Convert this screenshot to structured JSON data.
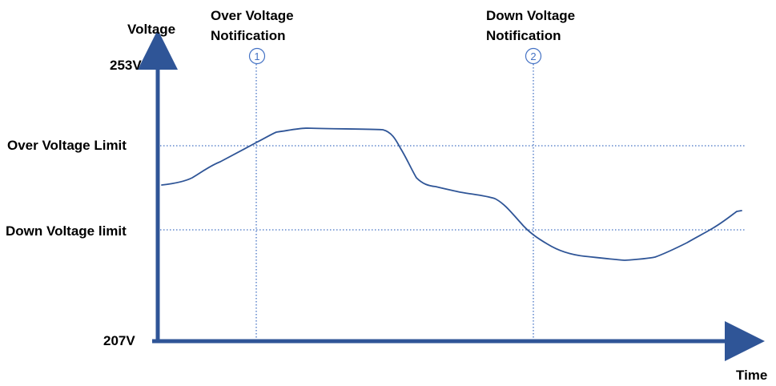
{
  "axis": {
    "y_label": "Voltage",
    "x_label": "Time",
    "y_top_tick": "253V",
    "y_bottom_tick": "207V",
    "color": "#2f5597"
  },
  "limits": {
    "over": "Over Voltage Limit",
    "down": "Down Voltage limit"
  },
  "notifications": [
    {
      "marker": "1",
      "line1": "Over Voltage",
      "line2": "Notification"
    },
    {
      "marker": "2",
      "line1": "Down Voltage",
      "line2": "Notification"
    }
  ],
  "colors": {
    "curve": "#2f5597",
    "guides": "#4472c4",
    "axis": "#2f5597",
    "text": "#000000"
  }
}
